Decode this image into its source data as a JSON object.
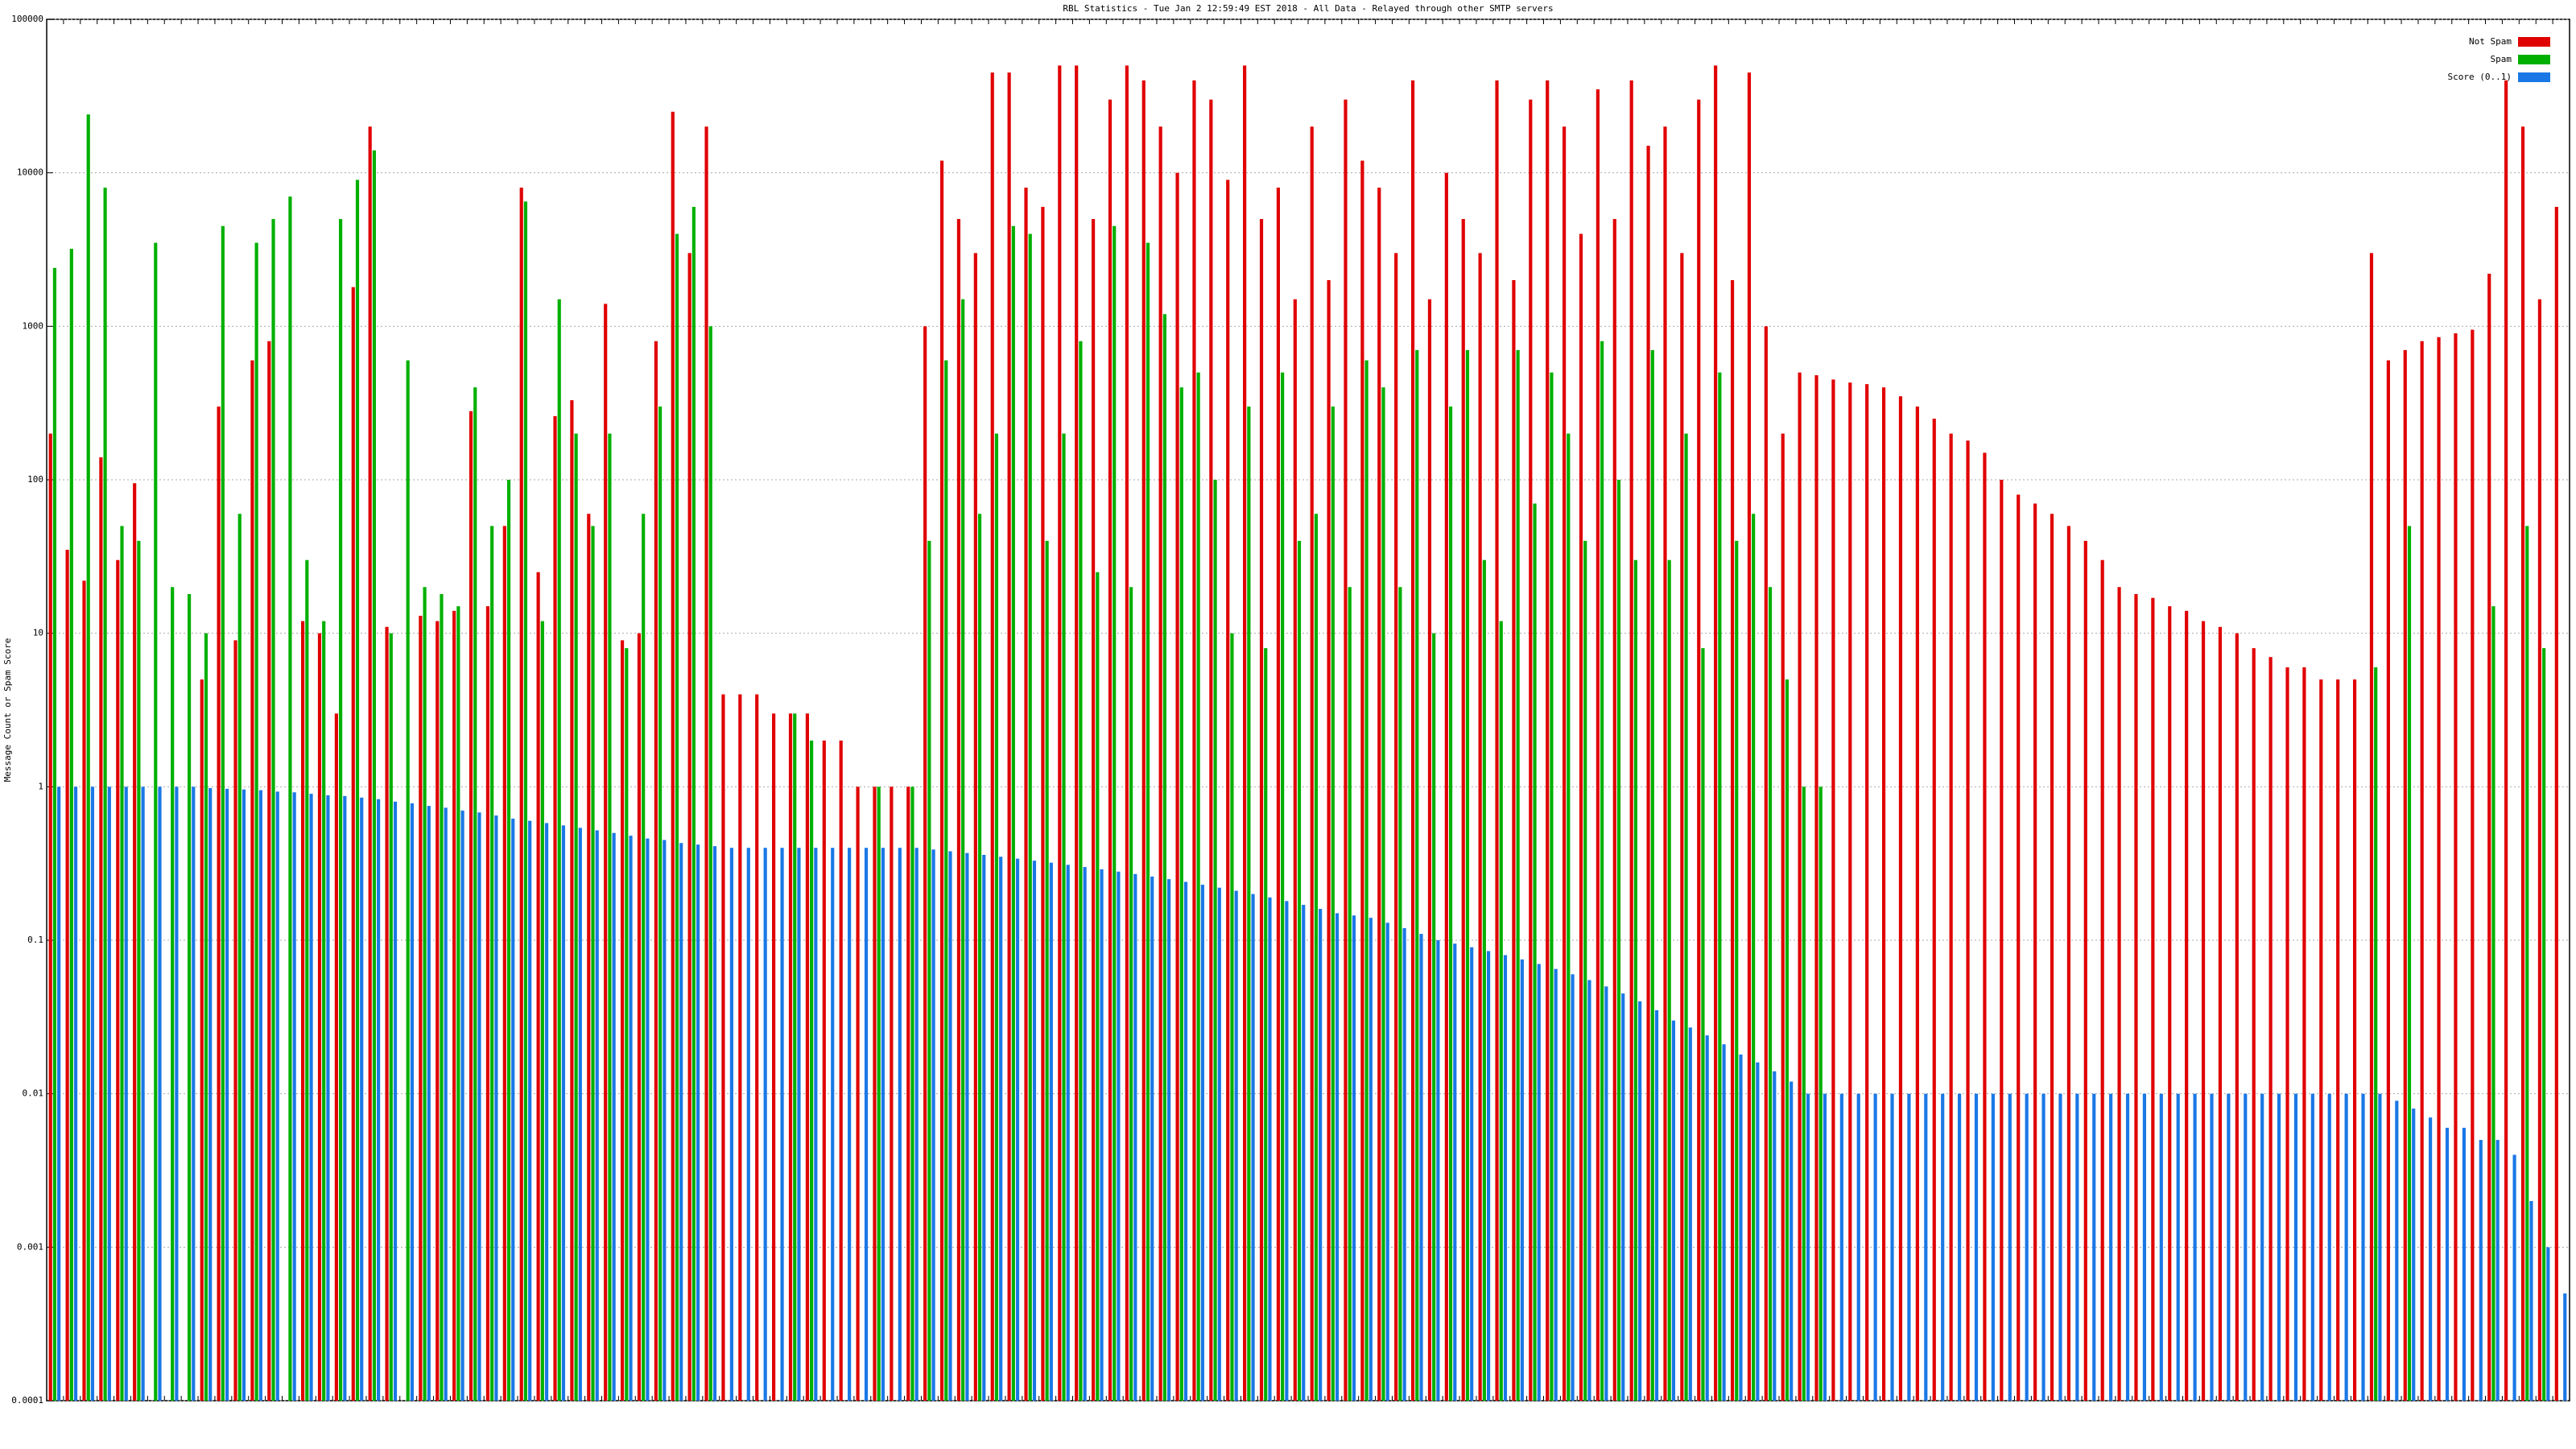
{
  "chart_data": {
    "type": "bar",
    "title": "RBL Statistics - Tue Jan  2 12:59:49 EST 2018 - All Data - Relayed through other SMTP servers",
    "y_label": "Message Count or Spam Score",
    "log_y": true,
    "grid": true,
    "legend": "upper right",
    "ylim": [
      0.0001,
      100000
    ],
    "yticks": [
      0.0001,
      0.001,
      0.01,
      0.1,
      1,
      10,
      100,
      1000,
      10000,
      100000
    ],
    "series": [
      {
        "name": "Not Spam",
        "color": "#e00000",
        "values": [
          200,
          35,
          22,
          140,
          30,
          95,
          null,
          null,
          null,
          5,
          300,
          9,
          600,
          800,
          null,
          12,
          10,
          3,
          1800,
          20000,
          11,
          null,
          13,
          12,
          14,
          280,
          15,
          50,
          8000,
          25,
          260,
          330,
          60,
          1400,
          9,
          10,
          800,
          25000,
          3000,
          20000,
          4,
          4,
          4,
          3,
          3,
          3,
          2,
          2,
          1,
          1,
          1,
          1,
          1000,
          12000,
          5000,
          3000,
          45000,
          45000,
          8000,
          6000,
          50000,
          50000,
          5000,
          30000,
          50000,
          40000,
          20000,
          10000,
          40000,
          30000,
          9000,
          50000,
          5000,
          8000,
          1500,
          20000,
          2000,
          30000,
          12000,
          8000,
          3000,
          40000,
          1500,
          10000,
          5000,
          3000,
          40000,
          2000,
          30000,
          40000,
          20000,
          4000,
          35000,
          5000,
          40000,
          15000,
          20000,
          3000,
          30000,
          50000,
          2000,
          45000,
          1000,
          200,
          500,
          480,
          450,
          430,
          420,
          400,
          350,
          300,
          250,
          200,
          180,
          150,
          100,
          80,
          70,
          60,
          50,
          40,
          30,
          20,
          18,
          17,
          15,
          14,
          12,
          11,
          10,
          8,
          7,
          6,
          6,
          5,
          5,
          5,
          3000,
          600,
          700,
          800,
          850,
          900,
          950,
          2200,
          40000,
          20000,
          1500,
          6000
        ]
      },
      {
        "name": "Spam",
        "color": "#00b000",
        "values": [
          2400,
          3200,
          24000,
          8000,
          50,
          40,
          3500,
          20,
          18,
          10,
          4500,
          60,
          3500,
          5000,
          7000,
          30,
          12,
          5000,
          9000,
          14000,
          10,
          600,
          20,
          18,
          15,
          400,
          50,
          100,
          6500,
          12,
          1500,
          200,
          50,
          200,
          8,
          60,
          300,
          4000,
          6000,
          1000,
          null,
          null,
          null,
          null,
          3,
          2,
          null,
          null,
          null,
          1,
          null,
          1,
          40,
          600,
          1500,
          60,
          200,
          4500,
          4000,
          40,
          200,
          800,
          25,
          4500,
          20,
          3500,
          1200,
          400,
          500,
          100,
          10,
          300,
          8,
          500,
          40,
          60,
          300,
          20,
          600,
          400,
          20,
          700,
          10,
          300,
          700,
          30,
          12,
          700,
          70,
          500,
          200,
          40,
          800,
          100,
          30,
          700,
          30,
          200,
          8,
          500,
          40,
          60,
          20,
          5,
          1,
          1,
          null,
          null,
          null,
          null,
          null,
          null,
          null,
          null,
          null,
          null,
          null,
          null,
          null,
          null,
          null,
          null,
          null,
          null,
          null,
          null,
          null,
          null,
          null,
          null,
          null,
          null,
          null,
          null,
          null,
          null,
          null,
          null,
          6,
          null,
          50,
          null,
          null,
          null,
          null,
          15,
          null,
          50,
          8,
          null
        ]
      },
      {
        "name": "Score (0..1)",
        "color": "#1a78e6",
        "values": [
          1,
          1,
          1,
          1,
          1,
          1,
          1,
          1,
          1,
          0.98,
          0.97,
          0.96,
          0.95,
          0.93,
          0.92,
          0.9,
          0.88,
          0.87,
          0.85,
          0.83,
          0.8,
          0.78,
          0.75,
          0.73,
          0.7,
          0.68,
          0.65,
          0.62,
          0.6,
          0.58,
          0.56,
          0.54,
          0.52,
          0.5,
          0.48,
          0.46,
          0.45,
          0.43,
          0.42,
          0.41,
          0.4,
          0.4,
          0.4,
          0.4,
          0.4,
          0.4,
          0.4,
          0.4,
          0.4,
          0.4,
          0.4,
          0.4,
          0.39,
          0.38,
          0.37,
          0.36,
          0.35,
          0.34,
          0.33,
          0.32,
          0.31,
          0.3,
          0.29,
          0.28,
          0.27,
          0.26,
          0.25,
          0.24,
          0.23,
          0.22,
          0.21,
          0.2,
          0.19,
          0.18,
          0.17,
          0.16,
          0.15,
          0.145,
          0.14,
          0.13,
          0.12,
          0.11,
          0.1,
          0.095,
          0.09,
          0.085,
          0.08,
          0.075,
          0.07,
          0.065,
          0.06,
          0.055,
          0.05,
          0.045,
          0.04,
          0.035,
          0.03,
          0.027,
          0.024,
          0.021,
          0.018,
          0.016,
          0.014,
          0.012,
          0.01,
          0.01,
          0.01,
          0.01,
          0.01,
          0.01,
          0.01,
          0.01,
          0.01,
          0.01,
          0.01,
          0.01,
          0.01,
          0.01,
          0.01,
          0.01,
          0.01,
          0.01,
          0.01,
          0.01,
          0.01,
          0.01,
          0.01,
          0.01,
          0.01,
          0.01,
          0.01,
          0.01,
          0.01,
          0.01,
          0.01,
          0.01,
          0.01,
          0.01,
          0.01,
          0.009,
          0.008,
          0.007,
          0.006,
          0.006,
          0.005,
          0.005,
          0.004,
          0.002,
          0.001,
          0.0005
        ]
      }
    ]
  }
}
